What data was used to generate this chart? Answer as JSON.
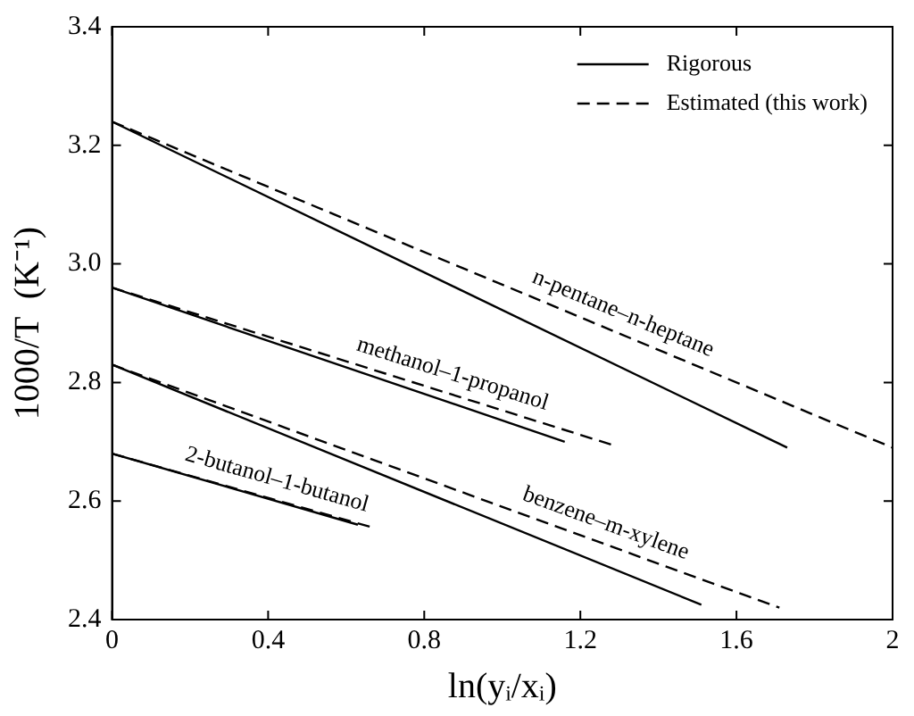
{
  "chart_data": {
    "type": "line",
    "xlabel": "ln(yᵢ/xᵢ)",
    "ylabel": "1000/T  (K⁻¹)",
    "xlim": [
      0,
      2
    ],
    "xticks": [
      0,
      0.4,
      0.8,
      1.2,
      1.6,
      2
    ],
    "ylim": [
      2.4,
      3.4
    ],
    "yticks": [
      2.4,
      2.6,
      2.8,
      {
        "value": 3,
        "label": "3.0"
      },
      3.2,
      3.4
    ],
    "legend": "top right",
    "marker": "none",
    "series": [
      {
        "name": "Rigorous",
        "color": "#000000",
        "line_style": "solid",
        "x": [
          0,
          1.73
        ],
        "values": [
          3.24,
          2.69
        ]
      },
      {
        "name": "Estimated (this work)",
        "color": "#000000",
        "line_style": "dashed",
        "x": [
          0,
          2
        ],
        "values": [
          3.24,
          2.69
        ]
      },
      {
        "color": "#000000",
        "line_style": "solid",
        "x": [
          0,
          1.16
        ],
        "values": [
          2.96,
          2.7
        ]
      },
      {
        "color": "#000000",
        "line_style": "dashed",
        "x": [
          0,
          1.28
        ],
        "values": [
          2.96,
          2.695
        ]
      },
      {
        "color": "#000000",
        "line_style": "solid",
        "x": [
          0,
          1.51
        ],
        "values": [
          2.83,
          2.425
        ]
      },
      {
        "color": "#000000",
        "line_style": "dashed",
        "x": [
          0,
          1.71
        ],
        "values": [
          2.83,
          2.42
        ]
      },
      {
        "color": "#000000",
        "line_style": "solid",
        "x": [
          0,
          0.63
        ],
        "values": [
          2.68,
          2.56
        ]
      },
      {
        "color": "#000000",
        "line_style": "dashed",
        "x": [
          0,
          0.67
        ],
        "values": [
          2.68,
          2.555
        ]
      }
    ],
    "annotations": [
      "n-pentane–n-heptane",
      "methanol–1-propanol",
      "benzene–m-xylene",
      "2-butanol–1-butanol"
    ]
  }
}
